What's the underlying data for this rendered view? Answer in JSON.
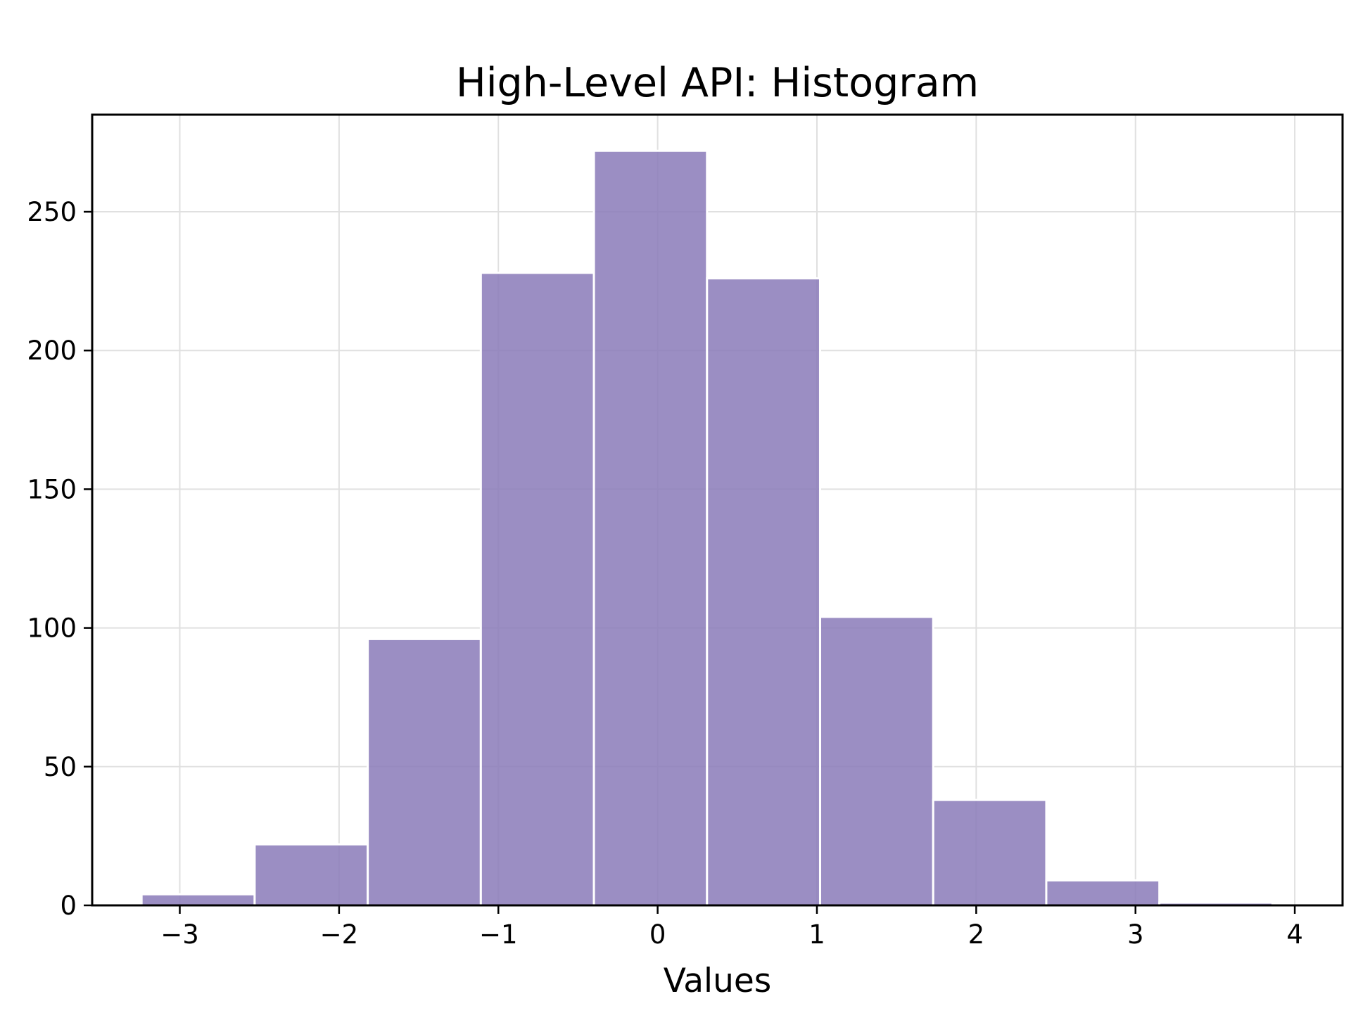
{
  "chart_data": {
    "type": "histogram",
    "title": "High-Level API: Histogram",
    "xlabel": "Values",
    "ylabel": "",
    "xlim": [
      -3.55,
      4.3
    ],
    "ylim": [
      0,
      285
    ],
    "xticks": [
      -3,
      -2,
      -1,
      0,
      1,
      2,
      3,
      4
    ],
    "xtick_labels": [
      "−3",
      "−2",
      "−1",
      "0",
      "1",
      "2",
      "3",
      "4"
    ],
    "yticks": [
      0,
      50,
      100,
      150,
      200,
      250
    ],
    "ytick_labels": [
      "0",
      "50",
      "100",
      "150",
      "200",
      "250"
    ],
    "grid": true,
    "bin_edges": [
      -3.24,
      -2.53,
      -1.82,
      -1.11,
      -0.4,
      0.31,
      1.02,
      1.73,
      2.44,
      3.15,
      3.86
    ],
    "counts": [
      4,
      22,
      96,
      228,
      272,
      226,
      104,
      38,
      9,
      1
    ],
    "colors": {
      "bar_fill": "#8a7ab8",
      "bar_edge": "#ffffff",
      "grid": "#e0e0e0",
      "axes": "#000000"
    }
  }
}
